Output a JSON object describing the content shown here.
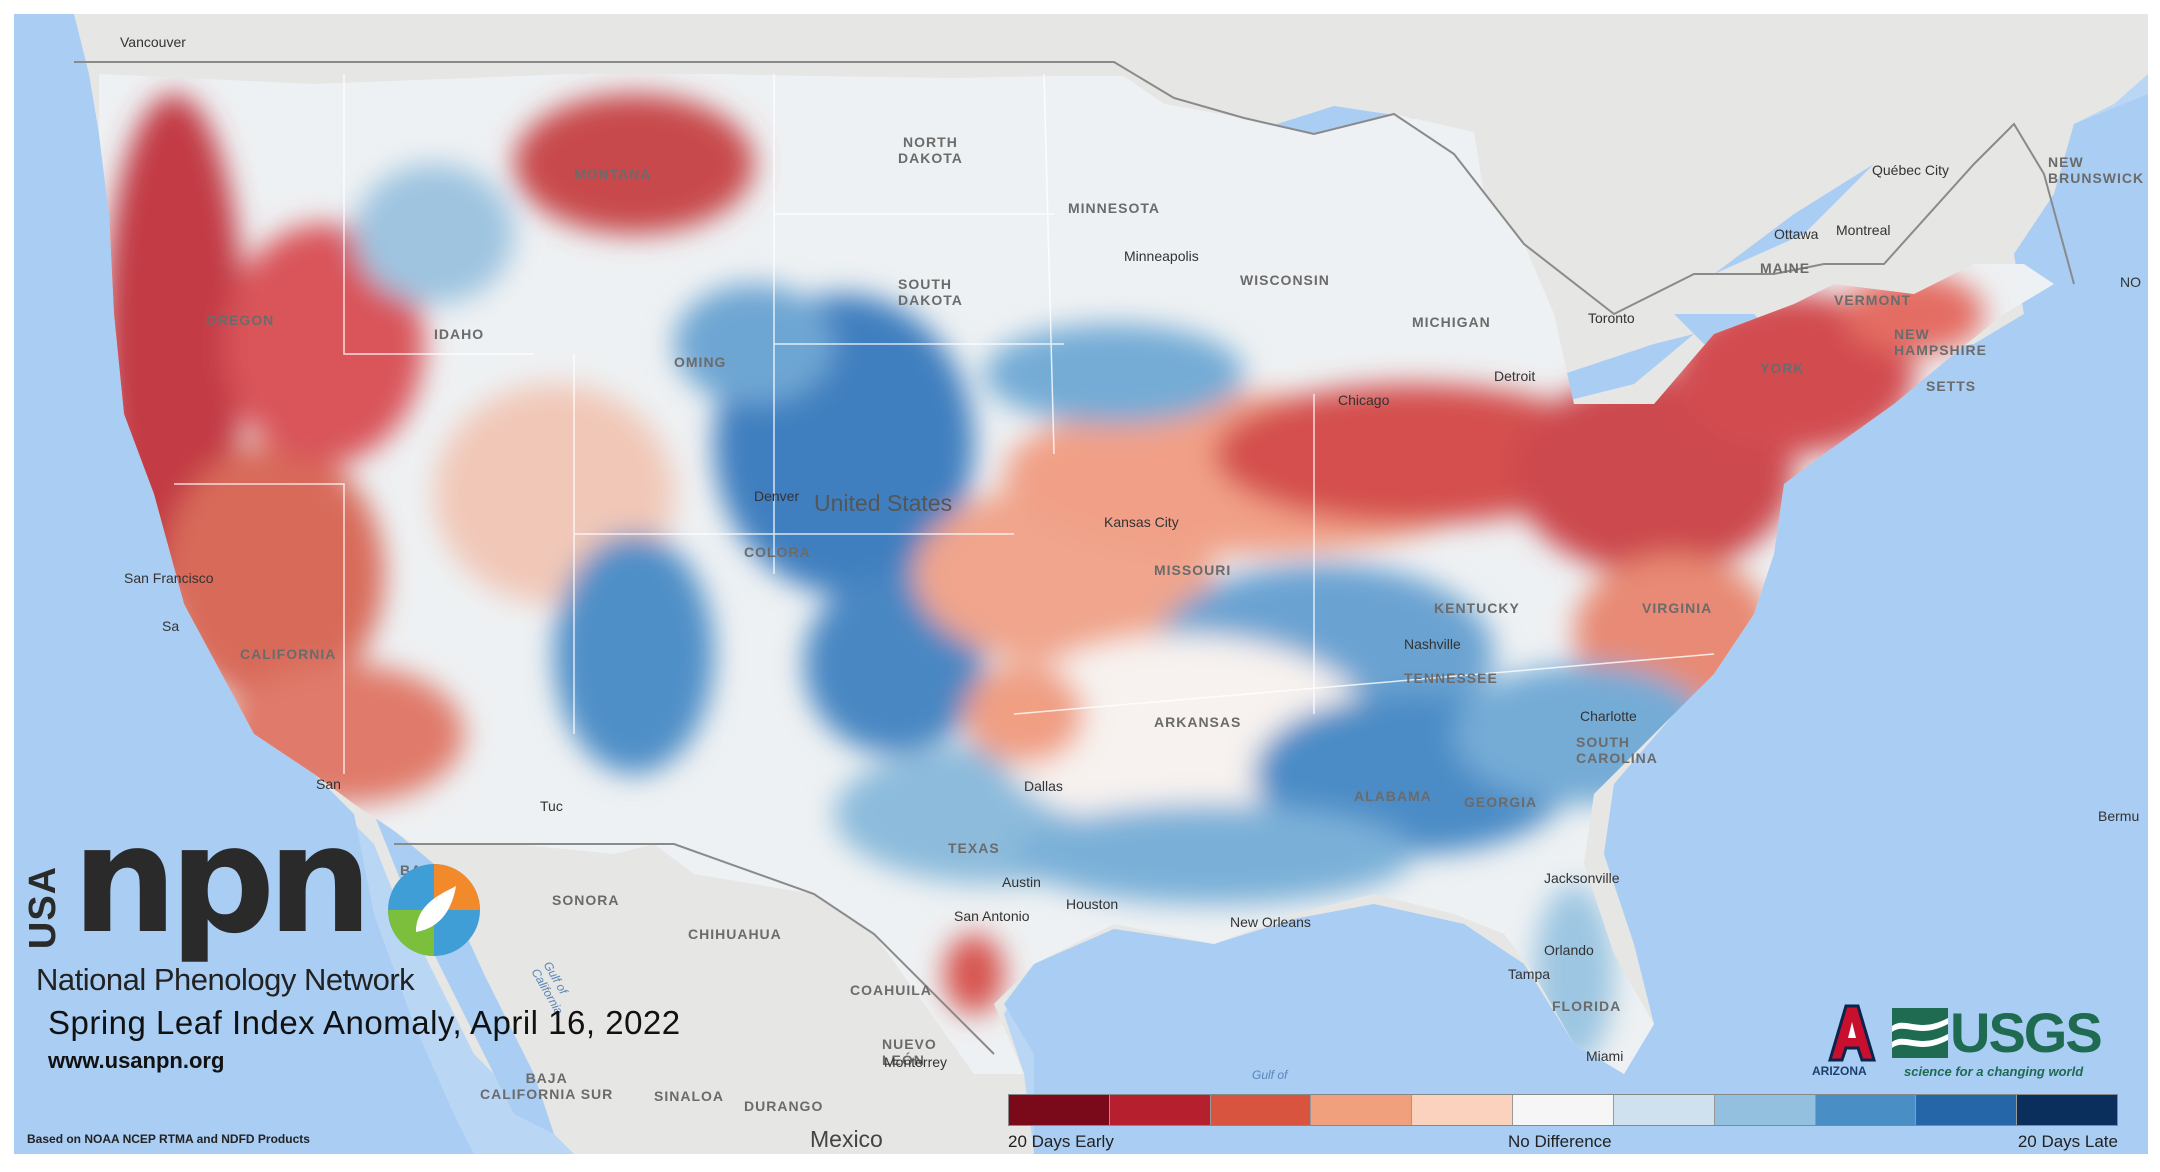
{
  "map": {
    "logo": {
      "usa": "USA",
      "npn": "npn",
      "organization": "National Phenology Network",
      "title": "Spring Leaf Index Anomaly, April 16, 2022",
      "url": "www.usanpn.org"
    },
    "credit": "Based on NOAA NCEP RTMA and NDFD Products",
    "partners": {
      "arizona": "ARIZONA",
      "usgs": "USGS",
      "usgs_tagline": "science for a changing world"
    },
    "legend": {
      "colors": [
        "#7a0a1a",
        "#b51f2e",
        "#d9543f",
        "#f0a07c",
        "#fbd2bd",
        "#f6f6f6",
        "#cfe1ef",
        "#92c0de",
        "#4a8ec6",
        "#2466a8",
        "#0b2f5c"
      ],
      "left": "20 Days Early",
      "middle": "No Difference",
      "right": "20 Days Late"
    },
    "place_labels": {
      "north_dakota": "NORTH\nDAKOTA",
      "montana": "MONTANA",
      "minnesota": "MINNESOTA",
      "wisconsin": "WISCONSIN",
      "michigan": "MICHIGAN",
      "south_dakota": "SOUTH\nDAKOTA",
      "idaho": "IDAHO",
      "oregon": "OREGON",
      "wyoming": "OMING",
      "colorado": "COLORA",
      "missouri": "MISSOURI",
      "kentucky": "KENTUCKY",
      "virginia": "VIRGINIA",
      "tennessee": "TENNESSEE",
      "arkansas": "ARKANSAS",
      "alabama": "ALABAMA",
      "georgia": "GEORGIA",
      "south_carolina": "SOUTH\nCAROLINA",
      "texas": "TEXAS",
      "florida": "FLORIDA",
      "maine": "MAINE",
      "vermont": "VERMONT",
      "new_hampshire": "NEW\nHAMPSHIRE",
      "massachusetts": "SETTS",
      "new_york": "YORK",
      "new_brunswick": "NEW\nBRUNSWICK",
      "sonora": "SONORA",
      "chihuahua": "CHIHUAHUA",
      "coahuila": "COAHUILA",
      "nuevo_leon": "NUEVO\nLEÓN",
      "durango": "DURANGO",
      "sinaloa": "SINALOA",
      "baja": "BAJA\nCALIFORNIA SUR",
      "baja_north": "BAJA",
      "california": "CALIFORNIA"
    },
    "cities": {
      "vancouver": "Vancouver",
      "minneapolis": "Minneapolis",
      "ottawa": "Ottawa",
      "montreal": "Montreal",
      "quebec": "Québec City",
      "toronto": "Toronto",
      "chicago": "Chicago",
      "detroit": "Detroit",
      "san_francisco": "San Francisco",
      "san_jose": "Sa",
      "san_diego": "San",
      "tucson": "Tuc",
      "dallas": "Dallas",
      "austin": "Austin",
      "houston": "Houston",
      "san_antonio": "San Antonio",
      "new_orleans": "New Orleans",
      "jacksonville": "Jacksonville",
      "orlando": "Orlando",
      "tampa": "Tampa",
      "miami": "Miami",
      "monterrey": "Monterrey",
      "charlotte": "Charlotte",
      "nashville": "Nashville",
      "kansas_city": "Kansas City",
      "denver": "Denver",
      "bermuda": "Bermu",
      "no": "NO"
    },
    "country_labels": {
      "us": "United States",
      "mexico": "Mexico"
    },
    "water_labels": {
      "gulf_california": "Gulf of\nCalifornia",
      "gulf_mexico": "Gulf of"
    }
  }
}
